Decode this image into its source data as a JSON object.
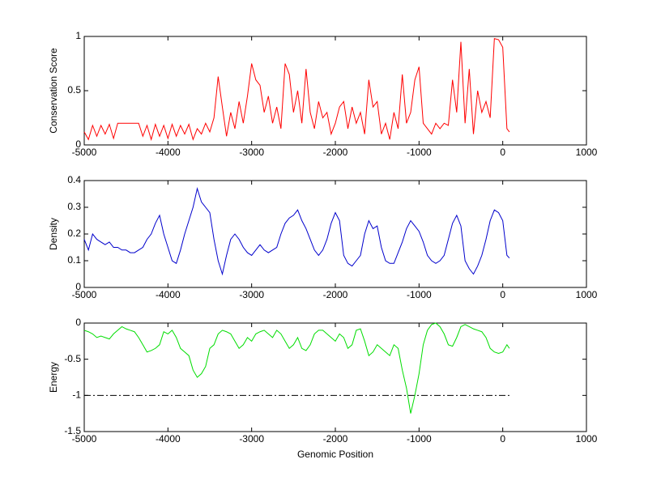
{
  "chart_data": [
    {
      "type": "line",
      "ylabel": "Conservation Score",
      "x": [
        -5000,
        -4950,
        -4900,
        -4850,
        -4800,
        -4750,
        -4700,
        -4650,
        -4600,
        -4550,
        -4500,
        -4450,
        -4400,
        -4350,
        -4300,
        -4250,
        -4200,
        -4150,
        -4100,
        -4050,
        -4000,
        -3950,
        -3900,
        -3850,
        -3800,
        -3750,
        -3700,
        -3650,
        -3600,
        -3550,
        -3500,
        -3450,
        -3400,
        -3350,
        -3300,
        -3250,
        -3200,
        -3150,
        -3100,
        -3050,
        -3000,
        -2950,
        -2900,
        -2850,
        -2800,
        -2750,
        -2700,
        -2650,
        -2600,
        -2550,
        -2500,
        -2450,
        -2400,
        -2350,
        -2300,
        -2250,
        -2200,
        -2150,
        -2100,
        -2050,
        -2000,
        -1950,
        -1900,
        -1850,
        -1800,
        -1750,
        -1700,
        -1650,
        -1600,
        -1550,
        -1500,
        -1450,
        -1400,
        -1350,
        -1300,
        -1250,
        -1200,
        -1150,
        -1100,
        -1050,
        -1000,
        -950,
        -900,
        -850,
        -800,
        -750,
        -700,
        -650,
        -600,
        -550,
        -500,
        -450,
        -400,
        -350,
        -300,
        -250,
        -200,
        -150,
        -100,
        -50,
        0,
        50,
        80
      ],
      "series": [
        {
          "color": "#ff0000",
          "values": [
            0.12,
            0.05,
            0.18,
            0.08,
            0.18,
            0.1,
            0.19,
            0.06,
            0.2,
            0.2,
            0.2,
            0.2,
            0.2,
            0.2,
            0.08,
            0.18,
            0.05,
            0.19,
            0.08,
            0.18,
            0.06,
            0.19,
            0.08,
            0.18,
            0.1,
            0.19,
            0.05,
            0.15,
            0.1,
            0.2,
            0.12,
            0.25,
            0.63,
            0.35,
            0.08,
            0.3,
            0.15,
            0.4,
            0.2,
            0.45,
            0.75,
            0.6,
            0.55,
            0.3,
            0.45,
            0.2,
            0.35,
            0.15,
            0.75,
            0.65,
            0.3,
            0.5,
            0.2,
            0.7,
            0.3,
            0.15,
            0.4,
            0.25,
            0.3,
            0.1,
            0.2,
            0.35,
            0.4,
            0.15,
            0.35,
            0.2,
            0.3,
            0.1,
            0.6,
            0.35,
            0.4,
            0.1,
            0.2,
            0.05,
            0.3,
            0.15,
            0.65,
            0.2,
            0.3,
            0.6,
            0.72,
            0.2,
            0.15,
            0.1,
            0.2,
            0.15,
            0.2,
            0.18,
            0.6,
            0.3,
            0.95,
            0.2,
            0.7,
            0.1,
            0.5,
            0.3,
            0.4,
            0.25,
            0.98,
            0.97,
            0.9,
            0.15,
            0.12
          ]
        }
      ],
      "xlim": [
        -5000,
        1000
      ],
      "xticks": [
        -5000,
        -4000,
        -3000,
        -2000,
        -1000,
        0,
        1000
      ],
      "ylim": [
        0,
        1
      ],
      "yticks": [
        0,
        0.5,
        1
      ]
    },
    {
      "type": "line",
      "ylabel": "Density",
      "x": [
        -5000,
        -4950,
        -4900,
        -4850,
        -4800,
        -4750,
        -4700,
        -4650,
        -4600,
        -4550,
        -4500,
        -4450,
        -4400,
        -4350,
        -4300,
        -4250,
        -4200,
        -4150,
        -4100,
        -4050,
        -4000,
        -3950,
        -3900,
        -3850,
        -3800,
        -3750,
        -3700,
        -3650,
        -3600,
        -3550,
        -3500,
        -3450,
        -3400,
        -3350,
        -3300,
        -3250,
        -3200,
        -3150,
        -3100,
        -3050,
        -3000,
        -2950,
        -2900,
        -2850,
        -2800,
        -2750,
        -2700,
        -2650,
        -2600,
        -2550,
        -2500,
        -2450,
        -2400,
        -2350,
        -2300,
        -2250,
        -2200,
        -2150,
        -2100,
        -2050,
        -2000,
        -1950,
        -1900,
        -1850,
        -1800,
        -1750,
        -1700,
        -1650,
        -1600,
        -1550,
        -1500,
        -1450,
        -1400,
        -1350,
        -1300,
        -1250,
        -1200,
        -1150,
        -1100,
        -1050,
        -1000,
        -950,
        -900,
        -850,
        -800,
        -750,
        -700,
        -650,
        -600,
        -550,
        -500,
        -450,
        -400,
        -350,
        -300,
        -250,
        -200,
        -150,
        -100,
        -50,
        0,
        50,
        80
      ],
      "series": [
        {
          "color": "#0000cc",
          "values": [
            0.18,
            0.14,
            0.2,
            0.18,
            0.17,
            0.16,
            0.17,
            0.15,
            0.15,
            0.14,
            0.14,
            0.13,
            0.13,
            0.14,
            0.15,
            0.18,
            0.2,
            0.24,
            0.27,
            0.2,
            0.15,
            0.1,
            0.09,
            0.14,
            0.2,
            0.25,
            0.3,
            0.37,
            0.32,
            0.3,
            0.28,
            0.18,
            0.1,
            0.05,
            0.12,
            0.18,
            0.2,
            0.18,
            0.15,
            0.13,
            0.12,
            0.14,
            0.16,
            0.14,
            0.13,
            0.14,
            0.15,
            0.2,
            0.24,
            0.26,
            0.27,
            0.29,
            0.25,
            0.22,
            0.18,
            0.14,
            0.12,
            0.14,
            0.18,
            0.24,
            0.28,
            0.25,
            0.12,
            0.09,
            0.08,
            0.1,
            0.12,
            0.2,
            0.25,
            0.22,
            0.23,
            0.15,
            0.1,
            0.09,
            0.09,
            0.13,
            0.17,
            0.22,
            0.25,
            0.23,
            0.21,
            0.17,
            0.12,
            0.1,
            0.09,
            0.1,
            0.12,
            0.18,
            0.24,
            0.27,
            0.23,
            0.1,
            0.07,
            0.05,
            0.08,
            0.12,
            0.18,
            0.25,
            0.29,
            0.28,
            0.25,
            0.12,
            0.11
          ]
        }
      ],
      "xlim": [
        -5000,
        1000
      ],
      "xticks": [
        -5000,
        -4000,
        -3000,
        -2000,
        -1000,
        0,
        1000
      ],
      "ylim": [
        0,
        0.4
      ],
      "yticks": [
        0,
        0.1,
        0.2,
        0.3,
        0.4
      ]
    },
    {
      "type": "line",
      "ylabel": "Energy",
      "xlabel": "Genomic Position",
      "x": [
        -5000,
        -4950,
        -4900,
        -4850,
        -4800,
        -4750,
        -4700,
        -4650,
        -4600,
        -4550,
        -4500,
        -4450,
        -4400,
        -4350,
        -4300,
        -4250,
        -4200,
        -4150,
        -4100,
        -4050,
        -4000,
        -3950,
        -3900,
        -3850,
        -3800,
        -3750,
        -3700,
        -3650,
        -3600,
        -3550,
        -3500,
        -3450,
        -3400,
        -3350,
        -3300,
        -3250,
        -3200,
        -3150,
        -3100,
        -3050,
        -3000,
        -2950,
        -2900,
        -2850,
        -2800,
        -2750,
        -2700,
        -2650,
        -2600,
        -2550,
        -2500,
        -2450,
        -2400,
        -2350,
        -2300,
        -2250,
        -2200,
        -2150,
        -2100,
        -2050,
        -2000,
        -1950,
        -1900,
        -1850,
        -1800,
        -1750,
        -1700,
        -1650,
        -1600,
        -1550,
        -1500,
        -1450,
        -1400,
        -1350,
        -1300,
        -1250,
        -1200,
        -1150,
        -1100,
        -1050,
        -1000,
        -950,
        -900,
        -850,
        -800,
        -750,
        -700,
        -650,
        -600,
        -550,
        -500,
        -450,
        -400,
        -350,
        -300,
        -250,
        -200,
        -150,
        -100,
        -50,
        0,
        50,
        80
      ],
      "series": [
        {
          "color": "#00dd00",
          "values": [
            -0.1,
            -0.12,
            -0.15,
            -0.2,
            -0.18,
            -0.2,
            -0.22,
            -0.15,
            -0.1,
            -0.05,
            -0.08,
            -0.1,
            -0.12,
            -0.2,
            -0.3,
            -0.4,
            -0.38,
            -0.35,
            -0.3,
            -0.12,
            -0.15,
            -0.1,
            -0.2,
            -0.35,
            -0.4,
            -0.45,
            -0.65,
            -0.75,
            -0.7,
            -0.6,
            -0.35,
            -0.3,
            -0.15,
            -0.1,
            -0.12,
            -0.15,
            -0.25,
            -0.35,
            -0.3,
            -0.2,
            -0.25,
            -0.15,
            -0.12,
            -0.1,
            -0.15,
            -0.2,
            -0.1,
            -0.15,
            -0.25,
            -0.35,
            -0.3,
            -0.2,
            -0.35,
            -0.38,
            -0.3,
            -0.15,
            -0.1,
            -0.1,
            -0.15,
            -0.2,
            -0.25,
            -0.15,
            -0.2,
            -0.35,
            -0.3,
            -0.1,
            -0.08,
            -0.25,
            -0.45,
            -0.4,
            -0.3,
            -0.35,
            -0.4,
            -0.45,
            -0.3,
            -0.35,
            -0.65,
            -0.9,
            -1.25,
            -1.0,
            -0.7,
            -0.3,
            -0.1,
            -0.02,
            0,
            -0.05,
            -0.15,
            -0.3,
            -0.32,
            -0.2,
            -0.05,
            -0.02,
            -0.05,
            -0.08,
            -0.1,
            -0.12,
            -0.2,
            -0.35,
            -0.4,
            -0.42,
            -0.4,
            -0.3,
            -0.35
          ]
        }
      ],
      "hline": {
        "y": -1,
        "x": [
          -5000,
          80
        ],
        "color": "#000000"
      },
      "xlim": [
        -5000,
        1000
      ],
      "xticks": [
        -5000,
        -4000,
        -3000,
        -2000,
        -1000,
        0,
        1000
      ],
      "ylim": [
        -1.5,
        0
      ],
      "yticks": [
        -1.5,
        -1,
        -0.5,
        0
      ]
    }
  ]
}
